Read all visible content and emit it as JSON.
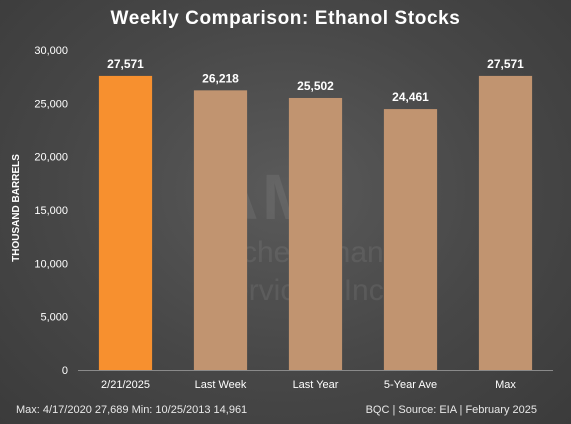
{
  "chart_data": {
    "type": "bar",
    "title": "Weekly Comparison: Ethanol Stocks",
    "ylabel": "THOUSAND BARRELS",
    "xlabel": "",
    "categories": [
      "2/21/2025",
      "Last Week",
      "Last Year",
      "5-Year Ave",
      "Max"
    ],
    "values": [
      27571,
      26218,
      25502,
      24461,
      27571
    ],
    "value_labels": [
      "27,571",
      "26,218",
      "25,502",
      "24,461",
      "27,571"
    ],
    "ylim": [
      0,
      30000
    ],
    "yticks": [
      0,
      5000,
      10000,
      15000,
      20000,
      25000,
      30000
    ],
    "ytick_labels": [
      "0",
      "5,000",
      "10,000",
      "15,000",
      "20,000",
      "25,000",
      "30,000"
    ],
    "bar_colors": [
      "#f7902f",
      "#c19470",
      "#c19470",
      "#c19470",
      "#c19470"
    ],
    "grid": false,
    "legend": "none"
  },
  "footer": {
    "left": "Max: 4/17/2020  27,689   Min: 10/25/2013  14,961",
    "right": "BQC | Source: EIA | February 2025"
  },
  "watermark": {
    "logo": "AMI",
    "line1": "Archer Financial",
    "line2": "Services, Inc."
  }
}
